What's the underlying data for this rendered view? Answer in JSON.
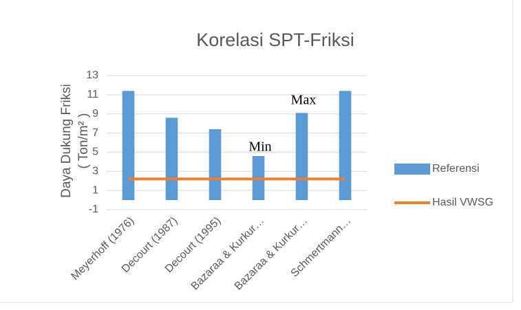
{
  "chart_data": {
    "type": "bar",
    "title": "Korelasi SPT-Friksi",
    "ylabel": [
      "Daya Dukung Friksi",
      "( Ton/m² )"
    ],
    "categories": [
      "Meyerhoff (1976)",
      "Decourt (1987)",
      "Decourt (1995)",
      "Bazaraa & Kurkur…",
      "Bazaraa & Kurkur…",
      "Schmertmann…"
    ],
    "series": [
      {
        "name": "Referensi",
        "type": "bar",
        "color": "#5b9bd5",
        "values": [
          11.4,
          8.6,
          7.4,
          4.6,
          9.1,
          11.4
        ]
      },
      {
        "name": "Hasil VWSG",
        "type": "line",
        "color": "#ed7d31",
        "values": [
          2.2,
          2.2,
          2.2,
          2.2,
          2.2,
          2.2
        ]
      }
    ],
    "annotations": [
      "Min",
      "Max"
    ],
    "ylim": [
      -1,
      13
    ],
    "yticks": [
      -1,
      1,
      3,
      5,
      7,
      9,
      11,
      13
    ],
    "grid": true,
    "legend": "right"
  }
}
